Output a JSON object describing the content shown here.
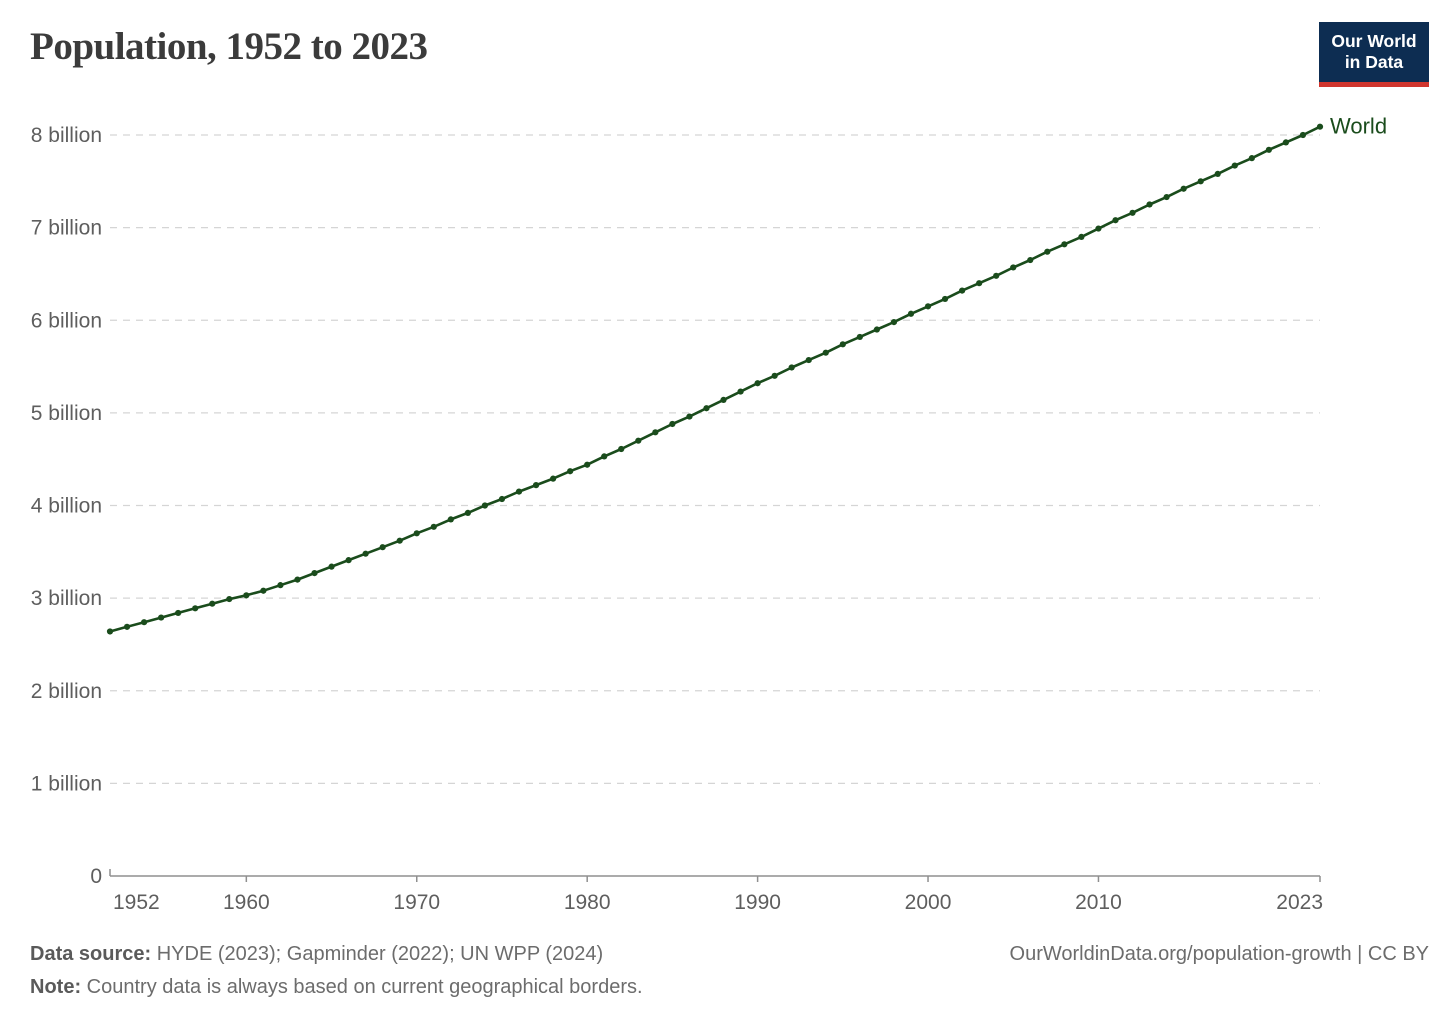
{
  "header": {
    "title": "Population, 1952 to 2023"
  },
  "logo": {
    "line1": "Our World",
    "line2": "in Data",
    "bg_color": "#0d2d52",
    "accent_color": "#d0352e"
  },
  "chart_data": {
    "type": "line",
    "title": "Population, 1952 to 2023",
    "xlabel": "",
    "ylabel": "",
    "unit": "billions of people",
    "xlim": [
      1952,
      2023
    ],
    "ylim": [
      0,
      8
    ],
    "grid": "horizontal-dashed",
    "grid_color": "#d5d5d5",
    "axis_color": "#8f8f8f",
    "tick_label_color": "#5e5e5e",
    "legend_position": "end-of-line",
    "x": [
      1952,
      1953,
      1954,
      1955,
      1956,
      1957,
      1958,
      1959,
      1960,
      1961,
      1962,
      1963,
      1964,
      1965,
      1966,
      1967,
      1968,
      1969,
      1970,
      1971,
      1972,
      1973,
      1974,
      1975,
      1976,
      1977,
      1978,
      1979,
      1980,
      1981,
      1982,
      1983,
      1984,
      1985,
      1986,
      1987,
      1988,
      1989,
      1990,
      1991,
      1992,
      1993,
      1994,
      1995,
      1996,
      1997,
      1998,
      1999,
      2000,
      2001,
      2002,
      2003,
      2004,
      2005,
      2006,
      2007,
      2008,
      2009,
      2010,
      2011,
      2012,
      2013,
      2014,
      2015,
      2016,
      2017,
      2018,
      2019,
      2020,
      2021,
      2022,
      2023
    ],
    "series": [
      {
        "name": "World",
        "color": "#1a4c1c",
        "values": [
          2.64,
          2.69,
          2.74,
          2.79,
          2.84,
          2.89,
          2.94,
          2.99,
          3.03,
          3.08,
          3.14,
          3.2,
          3.27,
          3.34,
          3.41,
          3.48,
          3.55,
          3.62,
          3.7,
          3.77,
          3.85,
          3.92,
          4.0,
          4.07,
          4.15,
          4.22,
          4.29,
          4.37,
          4.44,
          4.53,
          4.61,
          4.7,
          4.79,
          4.88,
          4.96,
          5.05,
          5.14,
          5.23,
          5.32,
          5.4,
          5.49,
          5.57,
          5.65,
          5.74,
          5.82,
          5.9,
          5.98,
          6.07,
          6.15,
          6.23,
          6.32,
          6.4,
          6.48,
          6.57,
          6.65,
          6.74,
          6.82,
          6.9,
          6.99,
          7.08,
          7.16,
          7.25,
          7.33,
          7.42,
          7.5,
          7.58,
          7.67,
          7.75,
          7.84,
          7.92,
          8.0,
          8.09
        ]
      }
    ],
    "yticks": [
      {
        "value": 0,
        "label": "0"
      },
      {
        "value": 1,
        "label": "1 billion"
      },
      {
        "value": 2,
        "label": "2 billion"
      },
      {
        "value": 3,
        "label": "3 billion"
      },
      {
        "value": 4,
        "label": "4 billion"
      },
      {
        "value": 5,
        "label": "5 billion"
      },
      {
        "value": 6,
        "label": "6 billion"
      },
      {
        "value": 7,
        "label": "7 billion"
      },
      {
        "value": 8,
        "label": "8 billion"
      }
    ],
    "xticks": [
      {
        "year": 1952,
        "label": "1952",
        "tick": false
      },
      {
        "year": 1960,
        "label": "1960",
        "tick": true
      },
      {
        "year": 1970,
        "label": "1970",
        "tick": true
      },
      {
        "year": 1980,
        "label": "1980",
        "tick": true
      },
      {
        "year": 1990,
        "label": "1990",
        "tick": true
      },
      {
        "year": 2000,
        "label": "2000",
        "tick": true
      },
      {
        "year": 2010,
        "label": "2010",
        "tick": true
      },
      {
        "year": 2023,
        "label": "2023",
        "tick": true
      }
    ]
  },
  "footer": {
    "source_label": "Data source:",
    "source_text": "HYDE (2023); Gapminder (2022); UN WPP (2024)",
    "note_label": "Note:",
    "note_text": "Country data is always based on current geographical borders.",
    "link": "OurWorldinData.org/population-growth | CC BY"
  }
}
